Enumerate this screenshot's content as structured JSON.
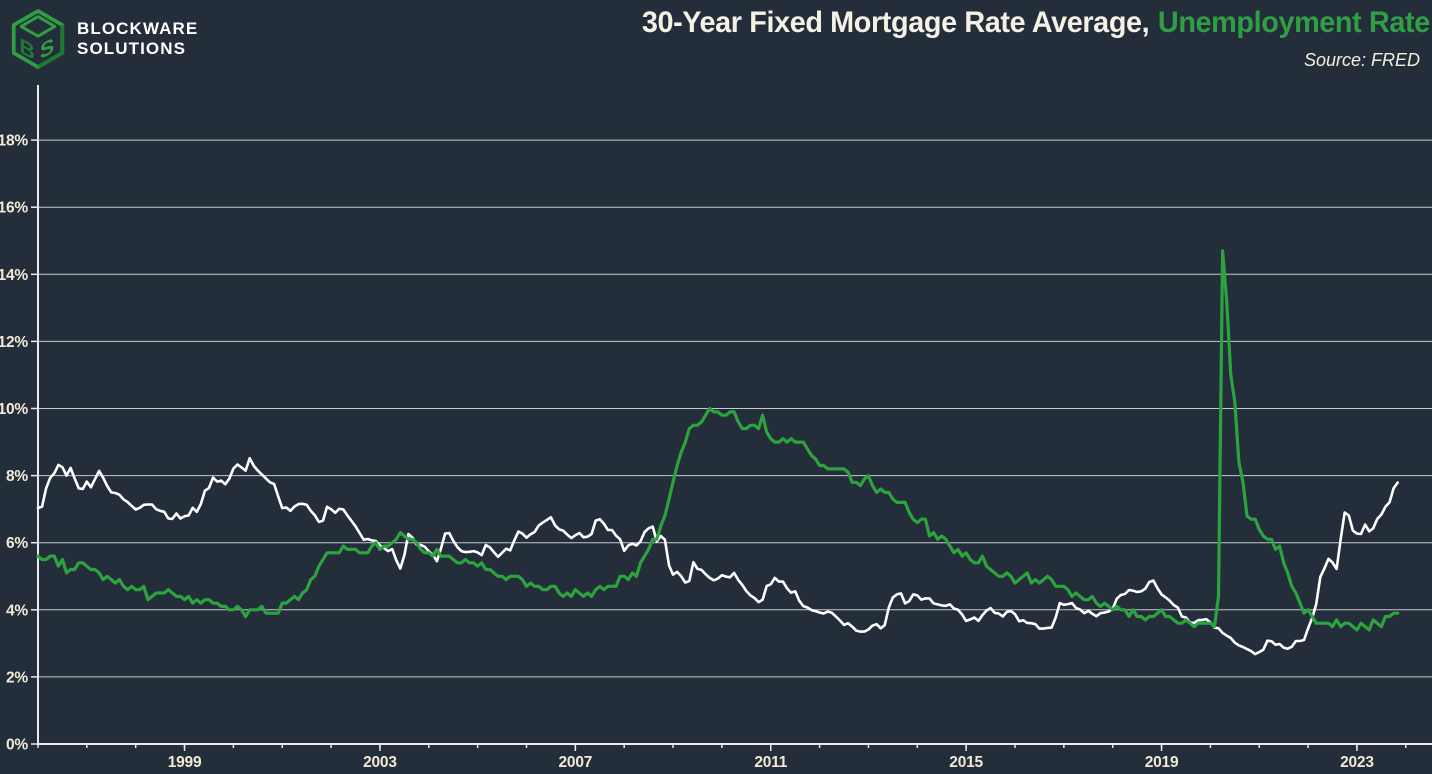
{
  "brand": {
    "line1": "BLOCKWARE",
    "line2": "SOLUTIONS",
    "logo": "blockware-cube-logo"
  },
  "header": {
    "title_primary": "30-Year Fixed Mortgage Rate Average,",
    "title_accent": "Unemployment Rate",
    "source": "Source: FRED"
  },
  "colors": {
    "background": "#242d3a",
    "accent_green": "#2f9e44",
    "series_green": "#2ca33e",
    "series_white": "#ffffff",
    "grid": "#e8ebee",
    "tick_label": "#f1ead6"
  },
  "chart_data": {
    "type": "line",
    "title": "30-Year Fixed Mortgage Rate Average, Unemployment Rate",
    "source": "Source: FRED",
    "legend_position": "in-title",
    "grid": "horizontal",
    "x_axis": {
      "start_year": 1996.0,
      "step_years": 0.0833333,
      "minor_tick_years": [
        1996,
        1997,
        1998,
        1999,
        2000,
        2001,
        2002,
        2003,
        2004,
        2005,
        2006,
        2007,
        2008,
        2009,
        2010,
        2011,
        2012,
        2013,
        2014,
        2015,
        2016,
        2017,
        2018,
        2019,
        2020,
        2021,
        2022,
        2023,
        2024
      ],
      "labeled_ticks": [
        {
          "year": 1999,
          "label": "1999"
        },
        {
          "year": 2003,
          "label": "2003"
        },
        {
          "year": 2007,
          "label": "2007"
        },
        {
          "year": 2011,
          "label": "2011"
        },
        {
          "year": 2015,
          "label": "2015"
        },
        {
          "year": 2019,
          "label": "2019"
        },
        {
          "year": 2023,
          "label": "2023"
        }
      ]
    },
    "y_axis": {
      "ylim": [
        0,
        19.6
      ],
      "ticks": [
        {
          "value": 0,
          "label": "0%"
        },
        {
          "value": 2,
          "label": "2%"
        },
        {
          "value": 4,
          "label": "4%"
        },
        {
          "value": 6,
          "label": "6%"
        },
        {
          "value": 8,
          "label": "8%"
        },
        {
          "value": 10,
          "label": "10%"
        },
        {
          "value": 12,
          "label": "12%"
        },
        {
          "value": 14,
          "label": "14%"
        },
        {
          "value": 16,
          "label": "16%"
        },
        {
          "value": 18,
          "label": "18%"
        }
      ]
    },
    "series": [
      {
        "name": "30-Year Fixed Mortgage Rate Average",
        "color": "#ffffff",
        "width": 2.6,
        "values": [
          7.03,
          7.08,
          7.62,
          7.93,
          8.07,
          8.32,
          8.25,
          8.0,
          8.23,
          7.92,
          7.62,
          7.6,
          7.82,
          7.65,
          7.9,
          8.14,
          7.94,
          7.69,
          7.5,
          7.48,
          7.43,
          7.29,
          7.21,
          7.1,
          6.99,
          7.04,
          7.13,
          7.14,
          7.14,
          7.0,
          6.95,
          6.92,
          6.72,
          6.71,
          6.87,
          6.72,
          6.79,
          6.81,
          7.04,
          6.92,
          7.15,
          7.55,
          7.63,
          7.94,
          7.82,
          7.85,
          7.74,
          7.91,
          8.21,
          8.33,
          8.24,
          8.15,
          8.52,
          8.29,
          8.15,
          8.03,
          7.91,
          7.8,
          7.75,
          7.38,
          7.03,
          7.05,
          6.95,
          7.08,
          7.15,
          7.16,
          7.13,
          6.95,
          6.82,
          6.62,
          6.66,
          7.07,
          7.0,
          6.89,
          7.01,
          6.99,
          6.81,
          6.65,
          6.49,
          6.29,
          6.09,
          6.11,
          6.07,
          6.05,
          5.92,
          5.84,
          5.75,
          5.81,
          5.48,
          5.23,
          5.63,
          6.26,
          6.15,
          5.95,
          5.93,
          5.88,
          5.74,
          5.64,
          5.45,
          5.83,
          6.27,
          6.29,
          6.06,
          5.87,
          5.75,
          5.72,
          5.73,
          5.75,
          5.71,
          5.63,
          5.93,
          5.86,
          5.72,
          5.58,
          5.7,
          5.82,
          5.77,
          6.07,
          6.33,
          6.27,
          6.15,
          6.25,
          6.32,
          6.51,
          6.6,
          6.68,
          6.76,
          6.52,
          6.4,
          6.36,
          6.24,
          6.14,
          6.22,
          6.29,
          6.16,
          6.18,
          6.26,
          6.66,
          6.7,
          6.57,
          6.38,
          6.38,
          6.21,
          6.1,
          5.76,
          5.92,
          5.97,
          5.92,
          6.04,
          6.32,
          6.43,
          6.48,
          6.04,
          6.2,
          6.09,
          5.33,
          5.05,
          5.13,
          5.0,
          4.81,
          4.86,
          5.42,
          5.22,
          5.19,
          5.06,
          4.95,
          4.88,
          4.93,
          5.03,
          4.99,
          4.97,
          5.1,
          4.89,
          4.74,
          4.56,
          4.43,
          4.35,
          4.23,
          4.3,
          4.71,
          4.76,
          4.95,
          4.84,
          4.84,
          4.64,
          4.51,
          4.55,
          4.27,
          4.11,
          4.07,
          3.99,
          3.96,
          3.92,
          3.89,
          3.95,
          3.91,
          3.8,
          3.68,
          3.55,
          3.6,
          3.5,
          3.38,
          3.35,
          3.35,
          3.41,
          3.53,
          3.57,
          3.45,
          3.54,
          4.07,
          4.37,
          4.46,
          4.49,
          4.19,
          4.26,
          4.46,
          4.43,
          4.3,
          4.34,
          4.34,
          4.19,
          4.16,
          4.13,
          4.12,
          4.16,
          4.04,
          4.0,
          3.86,
          3.67,
          3.71,
          3.77,
          3.67,
          3.84,
          3.98,
          4.05,
          3.91,
          3.89,
          3.8,
          3.94,
          3.96,
          3.87,
          3.66,
          3.69,
          3.61,
          3.6,
          3.57,
          3.44,
          3.44,
          3.46,
          3.47,
          3.77,
          4.2,
          4.15,
          4.17,
          4.2,
          4.05,
          4.01,
          3.9,
          3.97,
          3.88,
          3.81,
          3.9,
          3.92,
          3.95,
          4.03,
          4.33,
          4.44,
          4.47,
          4.59,
          4.57,
          4.53,
          4.55,
          4.63,
          4.83,
          4.87,
          4.64,
          4.46,
          4.37,
          4.27,
          4.14,
          4.07,
          3.8,
          3.77,
          3.62,
          3.61,
          3.69,
          3.7,
          3.72,
          3.62,
          3.47,
          3.45,
          3.31,
          3.23,
          3.16,
          3.02,
          2.94,
          2.89,
          2.83,
          2.77,
          2.68,
          2.74,
          2.81,
          3.08,
          3.06,
          2.96,
          2.98,
          2.87,
          2.84,
          2.9,
          3.07,
          3.07,
          3.1,
          3.45,
          3.76,
          4.17,
          4.98,
          5.23,
          5.52,
          5.41,
          5.22,
          6.11,
          6.9,
          6.81,
          6.36,
          6.27,
          6.26,
          6.54,
          6.34,
          6.43,
          6.71,
          6.84,
          7.07,
          7.2,
          7.62,
          7.79
        ]
      },
      {
        "name": "Unemployment Rate",
        "color": "#2ca33e",
        "width": 3.2,
        "values": [
          5.6,
          5.5,
          5.5,
          5.6,
          5.6,
          5.3,
          5.5,
          5.1,
          5.2,
          5.2,
          5.4,
          5.4,
          5.3,
          5.2,
          5.2,
          5.1,
          4.9,
          5.0,
          4.9,
          4.8,
          4.9,
          4.7,
          4.6,
          4.7,
          4.6,
          4.6,
          4.7,
          4.3,
          4.4,
          4.5,
          4.5,
          4.5,
          4.6,
          4.5,
          4.4,
          4.4,
          4.3,
          4.4,
          4.2,
          4.3,
          4.2,
          4.3,
          4.3,
          4.2,
          4.2,
          4.1,
          4.1,
          4.0,
          4.0,
          4.1,
          4.0,
          3.8,
          4.0,
          4.0,
          4.0,
          4.1,
          3.9,
          3.9,
          3.9,
          3.9,
          4.2,
          4.2,
          4.3,
          4.4,
          4.3,
          4.5,
          4.6,
          4.9,
          5.0,
          5.3,
          5.5,
          5.7,
          5.7,
          5.7,
          5.7,
          5.9,
          5.8,
          5.8,
          5.8,
          5.7,
          5.7,
          5.7,
          5.9,
          6.0,
          5.8,
          5.9,
          5.9,
          6.0,
          6.1,
          6.3,
          6.2,
          6.1,
          6.1,
          6.0,
          5.8,
          5.7,
          5.7,
          5.6,
          5.8,
          5.6,
          5.6,
          5.6,
          5.5,
          5.4,
          5.4,
          5.5,
          5.4,
          5.4,
          5.3,
          5.4,
          5.2,
          5.2,
          5.1,
          5.0,
          5.0,
          4.9,
          5.0,
          5.0,
          5.0,
          4.9,
          4.7,
          4.8,
          4.7,
          4.7,
          4.6,
          4.6,
          4.7,
          4.7,
          4.5,
          4.4,
          4.5,
          4.4,
          4.6,
          4.5,
          4.4,
          4.5,
          4.4,
          4.6,
          4.7,
          4.6,
          4.7,
          4.7,
          4.7,
          5.0,
          5.0,
          4.9,
          5.1,
          5.0,
          5.4,
          5.6,
          5.8,
          6.1,
          6.1,
          6.5,
          6.8,
          7.3,
          7.8,
          8.3,
          8.7,
          9.0,
          9.4,
          9.5,
          9.5,
          9.6,
          9.8,
          10.0,
          9.9,
          9.9,
          9.8,
          9.8,
          9.9,
          9.9,
          9.6,
          9.4,
          9.4,
          9.5,
          9.5,
          9.4,
          9.8,
          9.3,
          9.1,
          9.0,
          9.0,
          9.1,
          9.0,
          9.1,
          9.0,
          9.0,
          9.0,
          8.8,
          8.6,
          8.5,
          8.3,
          8.3,
          8.2,
          8.2,
          8.2,
          8.2,
          8.2,
          8.1,
          7.8,
          7.8,
          7.7,
          7.9,
          8.0,
          7.7,
          7.5,
          7.6,
          7.5,
          7.5,
          7.3,
          7.2,
          7.2,
          7.2,
          6.9,
          6.7,
          6.6,
          6.7,
          6.7,
          6.2,
          6.3,
          6.1,
          6.2,
          6.1,
          5.9,
          5.7,
          5.8,
          5.6,
          5.7,
          5.5,
          5.4,
          5.4,
          5.6,
          5.3,
          5.2,
          5.1,
          5.0,
          5.0,
          5.1,
          5.0,
          4.8,
          4.9,
          5.0,
          5.1,
          4.8,
          4.9,
          4.8,
          4.9,
          5.0,
          4.9,
          4.7,
          4.7,
          4.7,
          4.6,
          4.4,
          4.5,
          4.4,
          4.3,
          4.3,
          4.4,
          4.2,
          4.1,
          4.2,
          4.1,
          4.0,
          4.1,
          4.0,
          4.0,
          3.8,
          4.0,
          3.8,
          3.8,
          3.7,
          3.8,
          3.8,
          3.9,
          4.0,
          3.8,
          3.8,
          3.7,
          3.6,
          3.6,
          3.7,
          3.6,
          3.5,
          3.6,
          3.6,
          3.6,
          3.6,
          3.5,
          4.4,
          14.7,
          13.2,
          11.0,
          10.2,
          8.4,
          7.8,
          6.8,
          6.7,
          6.7,
          6.4,
          6.2,
          6.1,
          6.1,
          5.8,
          5.9,
          5.4,
          5.1,
          4.7,
          4.5,
          4.2,
          3.9,
          4.0,
          3.8,
          3.6,
          3.6,
          3.6,
          3.6,
          3.5,
          3.7,
          3.5,
          3.6,
          3.6,
          3.5,
          3.4,
          3.6,
          3.5,
          3.4,
          3.7,
          3.6,
          3.5,
          3.8,
          3.8,
          3.9,
          3.9
        ]
      }
    ]
  }
}
